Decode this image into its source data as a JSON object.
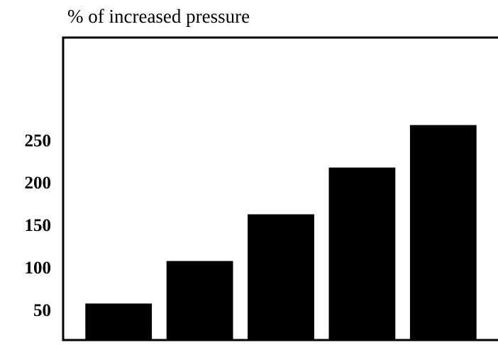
{
  "chart_data": {
    "type": "bar",
    "title": "% of increased pressure",
    "categories": [
      null,
      null,
      null,
      null,
      null
    ],
    "values": [
      60,
      110,
      165,
      220,
      270
    ],
    "color": "#000000",
    "ylim": [
      17,
      373
    ],
    "yticks": [
      50,
      100,
      150,
      200,
      250
    ],
    "grid": false
  }
}
